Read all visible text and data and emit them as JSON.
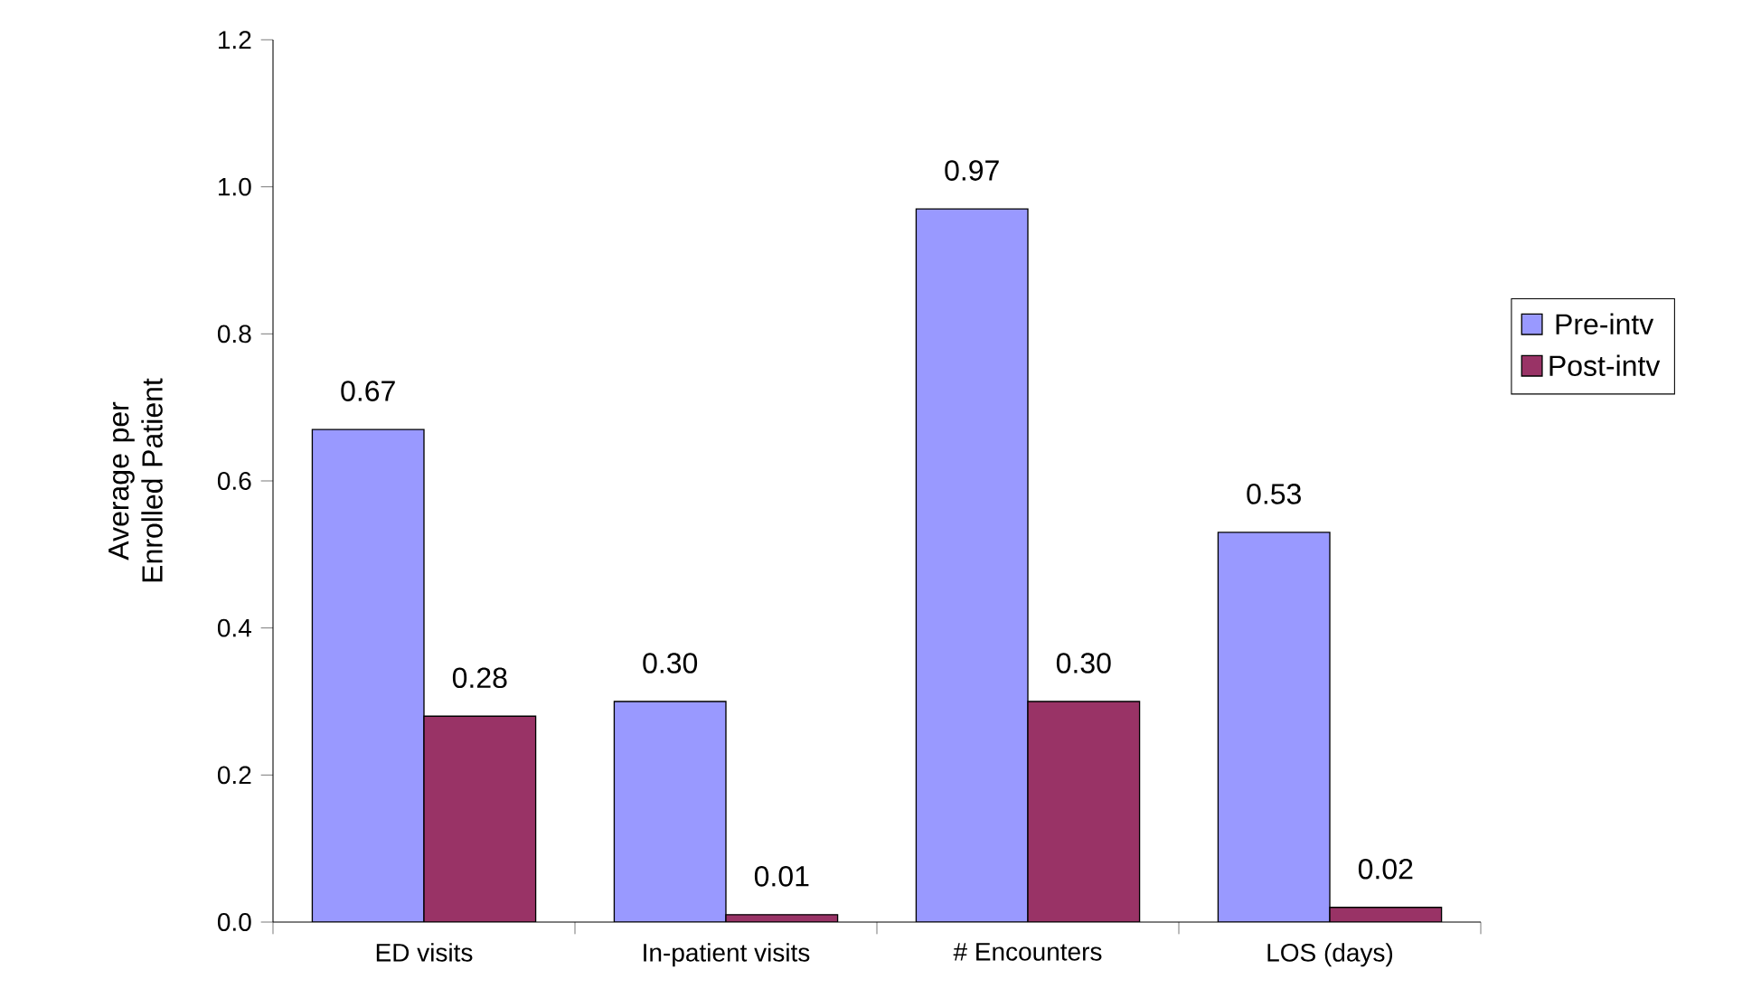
{
  "chart_data": {
    "type": "bar",
    "ylabel": "Average per Enrolled Patient",
    "categories": [
      "ED visits",
      "In-patient visits",
      "# Encounters",
      "LOS (days)"
    ],
    "series": [
      {
        "name": "Pre-intv",
        "color": "#9999ff",
        "values": [
          0.67,
          0.3,
          0.97,
          0.53
        ],
        "value_labels": [
          "0.67",
          "0.30",
          "0.97",
          "0.53"
        ]
      },
      {
        "name": "Post-intv",
        "color": "#993366",
        "values": [
          0.28,
          0.01,
          0.3,
          0.02
        ],
        "value_labels": [
          "0.28",
          "0.01",
          "0.30",
          "0.02"
        ]
      }
    ],
    "ylim": [
      0,
      1.2
    ],
    "yticks": [
      {
        "value": 0,
        "label": "0.0"
      },
      {
        "value": 0.2,
        "label": "0.2"
      },
      {
        "value": 0.4,
        "label": "0.4"
      },
      {
        "value": 0.6,
        "label": "0.6"
      },
      {
        "value": 0.8,
        "label": "0.8"
      },
      {
        "value": 1.0,
        "label": "1.0"
      },
      {
        "value": 1.2,
        "label": "1.2"
      }
    ],
    "legend": "right"
  }
}
